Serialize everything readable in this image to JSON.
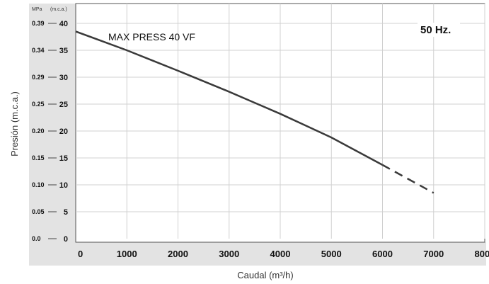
{
  "chart_data": {
    "type": "line",
    "title": "",
    "xlabel": "Caudal (m³/h)",
    "ylabel": "Presión (m.c.a.)",
    "y_unit_primary": "(m.c.a.)",
    "y_unit_secondary": "MPa",
    "frequency_label": "50 Hz.",
    "x_ticks": [
      "0",
      "1000",
      "2000",
      "3000",
      "4000",
      "5000",
      "6000",
      "7000",
      "8000"
    ],
    "y_ticks_mca": [
      "0",
      "5",
      "10",
      "15",
      "20",
      "25",
      "30",
      "35",
      "40"
    ],
    "y_ticks_mpa": [
      "0.0",
      "0.05",
      "0.10",
      "0.15",
      "0.20",
      "0.25",
      "0.29",
      "0.34",
      "0.39"
    ],
    "xlim": [
      0,
      8000
    ],
    "ylim": [
      0,
      40
    ],
    "grid": true,
    "series": [
      {
        "name": "MAX PRESS 40 VF",
        "x": [
          0,
          1000,
          2000,
          3000,
          4000,
          5000,
          6000
        ],
        "y": [
          38.5,
          35,
          31.2,
          27.3,
          23.2,
          18.8,
          13.7
        ]
      },
      {
        "name": "",
        "style": "dashed",
        "x": [
          6000,
          7000
        ],
        "y": [
          13.7,
          8.5
        ]
      }
    ],
    "colors": {
      "line": "#3a3a3a",
      "grid": "#d0d0d0",
      "axis_band": "#e3e3e3"
    }
  }
}
